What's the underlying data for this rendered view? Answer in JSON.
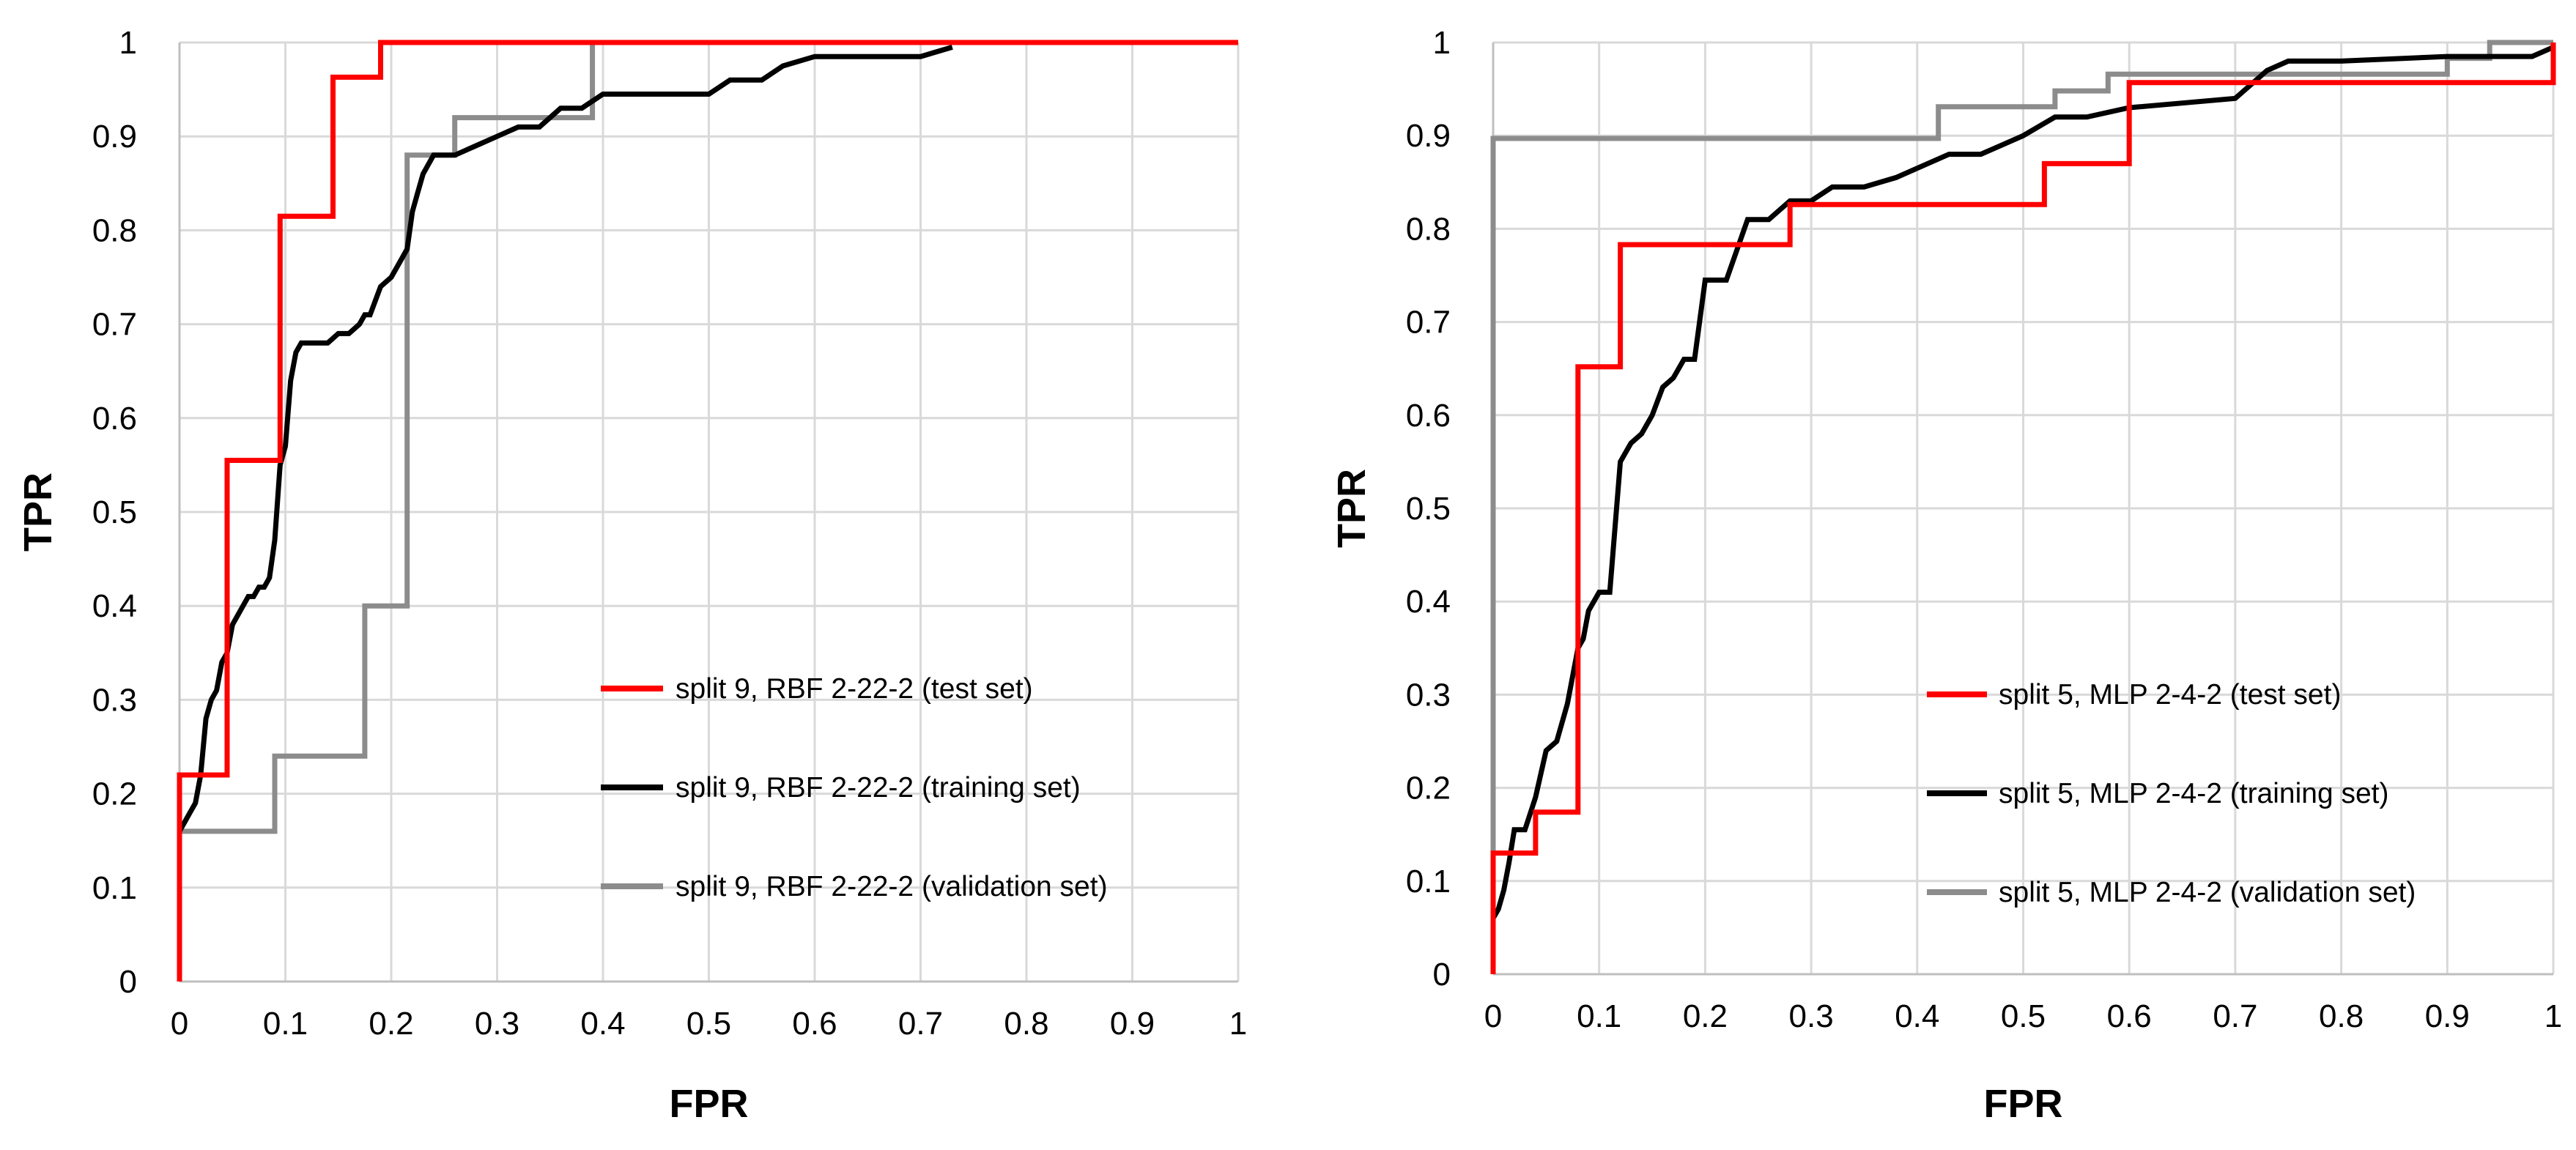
{
  "chart_data": [
    {
      "type": "line",
      "title": "",
      "xlabel": "FPR",
      "ylabel": "TPR",
      "xlim": [
        0,
        1
      ],
      "ylim": [
        0,
        1
      ],
      "grid": true,
      "legend_position": "lower-right",
      "x_ticks": [
        "0",
        "0.1",
        "0.2",
        "0.3",
        "0.4",
        "0.5",
        "0.6",
        "0.7",
        "0.8",
        "0.9",
        "1"
      ],
      "y_ticks": [
        "0",
        "0.1",
        "0.2",
        "0.3",
        "0.4",
        "0.5",
        "0.6",
        "0.7",
        "0.8",
        "0.9",
        "1"
      ],
      "series": [
        {
          "name": "split 9, RBF 2-22-2 (test set)",
          "color": "#ff0000",
          "x": [
            0,
            0,
            0.045,
            0.045,
            0.095,
            0.095,
            0.145,
            0.145,
            0.19,
            0.19,
            1
          ],
          "y": [
            0,
            0.22,
            0.22,
            0.555,
            0.555,
            0.815,
            0.815,
            0.963,
            0.963,
            1,
            1
          ]
        },
        {
          "name": "split 9, RBF 2-22-2 (training set)",
          "color": "#000000",
          "x": [
            0,
            0.005,
            0.01,
            0.015,
            0.02,
            0.025,
            0.03,
            0.035,
            0.04,
            0.045,
            0.05,
            0.055,
            0.06,
            0.065,
            0.07,
            0.075,
            0.08,
            0.085,
            0.09,
            0.095,
            0.1,
            0.105,
            0.11,
            0.115,
            0.12,
            0.13,
            0.14,
            0.15,
            0.16,
            0.17,
            0.175,
            0.18,
            0.19,
            0.2,
            0.21,
            0.215,
            0.22,
            0.225,
            0.23,
            0.24,
            0.26,
            0.28,
            0.3,
            0.32,
            0.34,
            0.36,
            0.38,
            0.4,
            0.45,
            0.5,
            0.52,
            0.55,
            0.57,
            0.6,
            0.65,
            0.7,
            0.73
          ],
          "y": [
            0.16,
            0.17,
            0.18,
            0.19,
            0.22,
            0.28,
            0.3,
            0.31,
            0.34,
            0.35,
            0.38,
            0.39,
            0.4,
            0.41,
            0.41,
            0.42,
            0.42,
            0.43,
            0.47,
            0.55,
            0.57,
            0.64,
            0.67,
            0.68,
            0.68,
            0.68,
            0.68,
            0.69,
            0.69,
            0.7,
            0.71,
            0.71,
            0.74,
            0.75,
            0.77,
            0.78,
            0.82,
            0.84,
            0.86,
            0.88,
            0.88,
            0.89,
            0.9,
            0.91,
            0.91,
            0.93,
            0.93,
            0.945,
            0.945,
            0.945,
            0.96,
            0.96,
            0.975,
            0.985,
            0.985,
            0.985,
            0.995
          ]
        },
        {
          "name": "split 9, RBF 2-22-2 (validation set)",
          "color": "#8c8c8c",
          "x": [
            0,
            0,
            0.09,
            0.09,
            0.175,
            0.175,
            0.215,
            0.215,
            0.26,
            0.26,
            0.39,
            0.39,
            1
          ],
          "y": [
            0,
            0.16,
            0.16,
            0.24,
            0.24,
            0.4,
            0.4,
            0.88,
            0.88,
            0.92,
            0.92,
            1,
            1
          ]
        }
      ]
    },
    {
      "type": "line",
      "title": "",
      "xlabel": "FPR",
      "ylabel": "TPR",
      "xlim": [
        0,
        1
      ],
      "ylim": [
        0,
        1
      ],
      "grid": true,
      "legend_position": "lower-right",
      "x_ticks": [
        "0",
        "0.1",
        "0.2",
        "0.3",
        "0.4",
        "0.5",
        "0.6",
        "0.7",
        "0.8",
        "0.9",
        "1"
      ],
      "y_ticks": [
        "0",
        "0.1",
        "0.2",
        "0.3",
        "0.4",
        "0.5",
        "0.6",
        "0.7",
        "0.8",
        "0.9",
        "1"
      ],
      "series": [
        {
          "name": "split 5, MLP 2-4-2 (test set)",
          "color": "#ff0000",
          "x": [
            0,
            0,
            0.04,
            0.04,
            0.08,
            0.08,
            0.12,
            0.12,
            0.28,
            0.28,
            0.52,
            0.52,
            0.6,
            0.6,
            1,
            1
          ],
          "y": [
            0,
            0.13,
            0.13,
            0.174,
            0.174,
            0.652,
            0.652,
            0.783,
            0.783,
            0.826,
            0.826,
            0.87,
            0.87,
            0.957,
            0.957,
            1
          ]
        },
        {
          "name": "split 5, MLP 2-4-2 (training set)",
          "color": "#000000",
          "x": [
            0,
            0.005,
            0.01,
            0.015,
            0.02,
            0.03,
            0.04,
            0.05,
            0.06,
            0.07,
            0.08,
            0.085,
            0.09,
            0.1,
            0.11,
            0.12,
            0.13,
            0.14,
            0.15,
            0.16,
            0.17,
            0.18,
            0.19,
            0.2,
            0.22,
            0.24,
            0.26,
            0.28,
            0.3,
            0.32,
            0.35,
            0.38,
            0.4,
            0.43,
            0.46,
            0.48,
            0.5,
            0.53,
            0.56,
            0.6,
            0.65,
            0.7,
            0.73,
            0.75,
            0.8,
            0.9,
            0.98,
            1
          ],
          "y": [
            0.06,
            0.07,
            0.09,
            0.12,
            0.155,
            0.155,
            0.19,
            0.24,
            0.25,
            0.29,
            0.35,
            0.36,
            0.39,
            0.41,
            0.41,
            0.55,
            0.57,
            0.58,
            0.6,
            0.63,
            0.64,
            0.66,
            0.66,
            0.745,
            0.745,
            0.81,
            0.81,
            0.83,
            0.83,
            0.845,
            0.845,
            0.855,
            0.865,
            0.88,
            0.88,
            0.89,
            0.9,
            0.92,
            0.92,
            0.93,
            0.935,
            0.94,
            0.97,
            0.98,
            0.98,
            0.985,
            0.985,
            0.995
          ]
        },
        {
          "name": "split 5, MLP 2-4-2 (validation set)",
          "color": "#8c8c8c",
          "x": [
            0,
            0,
            0.42,
            0.42,
            0.53,
            0.53,
            0.58,
            0.58,
            0.9,
            0.9,
            0.94,
            0.94,
            1
          ],
          "y": [
            0,
            0.897,
            0.897,
            0.931,
            0.931,
            0.948,
            0.948,
            0.966,
            0.966,
            0.983,
            0.983,
            1,
            1
          ]
        }
      ]
    }
  ]
}
